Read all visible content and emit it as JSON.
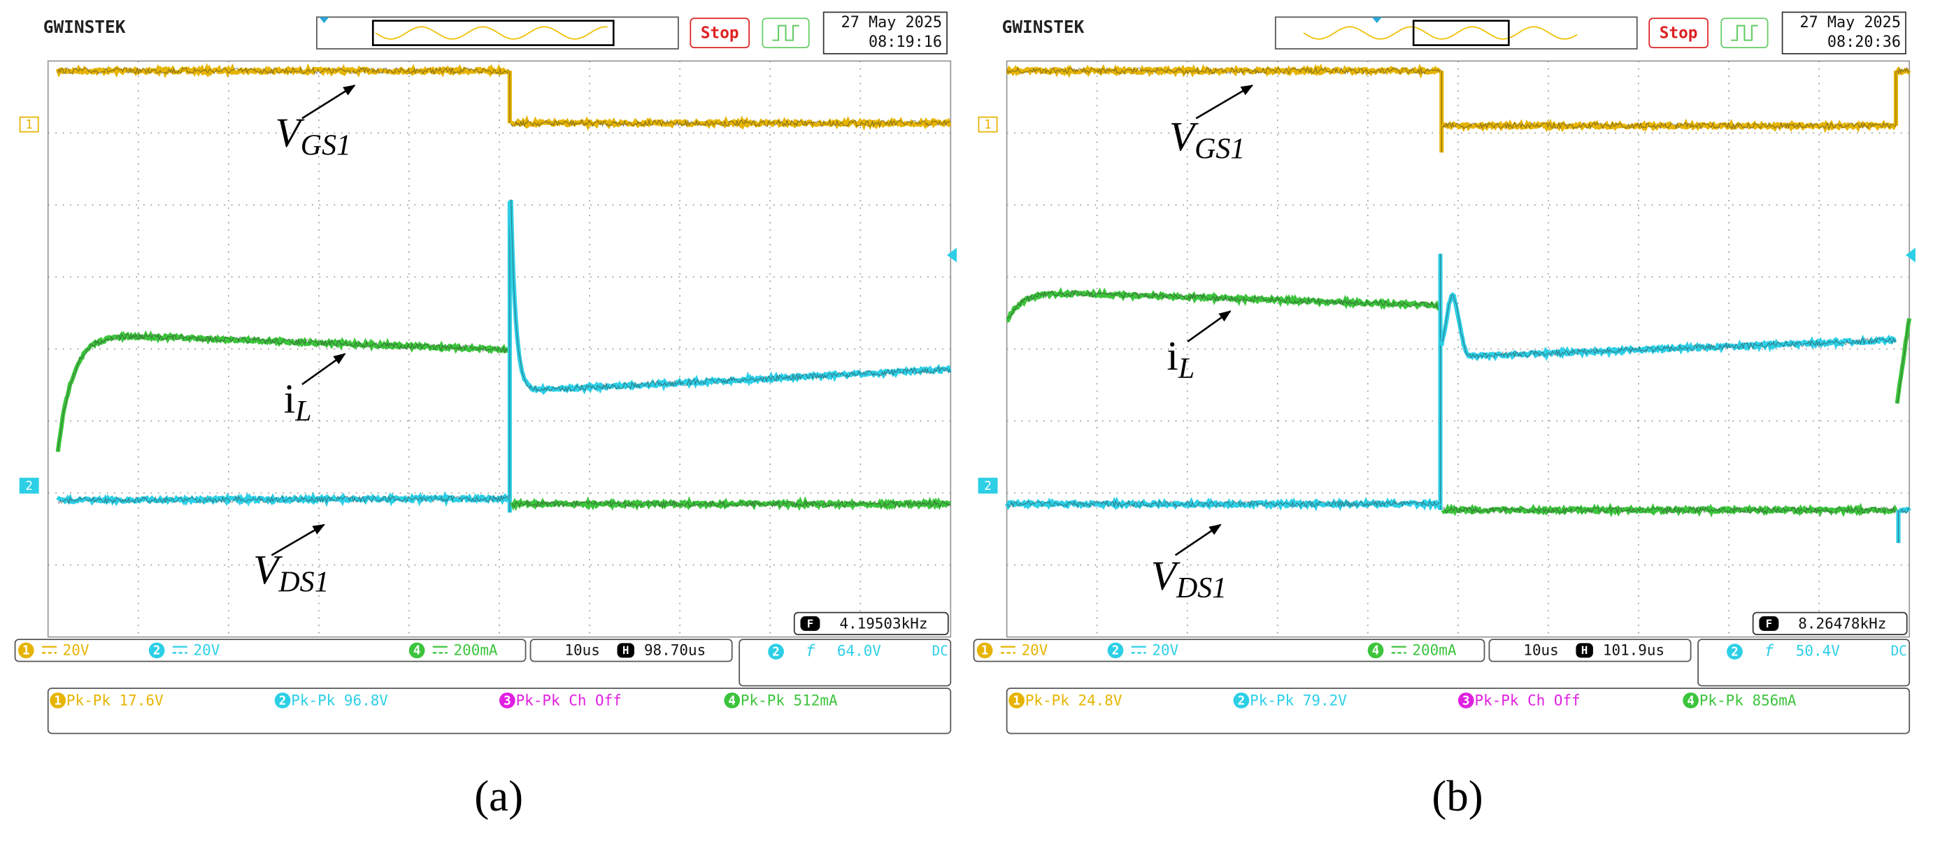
{
  "panels": [
    {
      "brand": "GWINSTEK",
      "status": "Stop",
      "date": "27 May 2025",
      "time": "08:19:16",
      "channel_markers": [
        "1",
        "2"
      ],
      "labels": {
        "vgs": {
          "symbol": "V",
          "subscript": "GS1"
        },
        "il": {
          "symbol": "i",
          "subscript": "L"
        },
        "vds": {
          "symbol": "V",
          "subscript": "DS1"
        }
      },
      "frequency_icon": "F",
      "frequency": "4.19503kHz",
      "ch1": {
        "id": "1",
        "scale": "20V"
      },
      "ch2": {
        "id": "2",
        "scale": "20V"
      },
      "ch4": {
        "id": "4",
        "scale": "200mA"
      },
      "timebase": "10us",
      "horizontal_icon": "H",
      "position": "98.70us",
      "trigger": {
        "source": "2",
        "slope": "f",
        "level": "64.0V",
        "coupling": "DC"
      },
      "measurements": [
        {
          "id": "1",
          "label": "Pk-Pk 17.6V"
        },
        {
          "id": "2",
          "label": "Pk-Pk 96.8V"
        },
        {
          "id": "3",
          "label": "Pk-Pk Ch Off"
        },
        {
          "id": "4",
          "label": "Pk-Pk 512mA"
        }
      ],
      "caption": "(a)"
    },
    {
      "brand": "GWINSTEK",
      "status": "Stop",
      "date": "27 May 2025",
      "time": "08:20:36",
      "channel_markers": [
        "1",
        "2"
      ],
      "labels": {
        "vgs": {
          "symbol": "V",
          "subscript": "GS1"
        },
        "il": {
          "symbol": "i",
          "subscript": "L"
        },
        "vds": {
          "symbol": "V",
          "subscript": "DS1"
        }
      },
      "frequency_icon": "F",
      "frequency": "8.26478kHz",
      "ch1": {
        "id": "1",
        "scale": "20V"
      },
      "ch2": {
        "id": "2",
        "scale": "20V"
      },
      "ch4": {
        "id": "4",
        "scale": "200mA"
      },
      "timebase": "10us",
      "horizontal_icon": "H",
      "position": "101.9us",
      "trigger": {
        "source": "2",
        "slope": "f",
        "level": "50.4V",
        "coupling": "DC"
      },
      "measurements": [
        {
          "id": "1",
          "label": "Pk-Pk 24.8V"
        },
        {
          "id": "2",
          "label": "Pk-Pk 79.2V"
        },
        {
          "id": "3",
          "label": "Pk-Pk Ch Off"
        },
        {
          "id": "4",
          "label": "Pk-Pk 856mA"
        }
      ],
      "caption": "(b)"
    }
  ]
}
